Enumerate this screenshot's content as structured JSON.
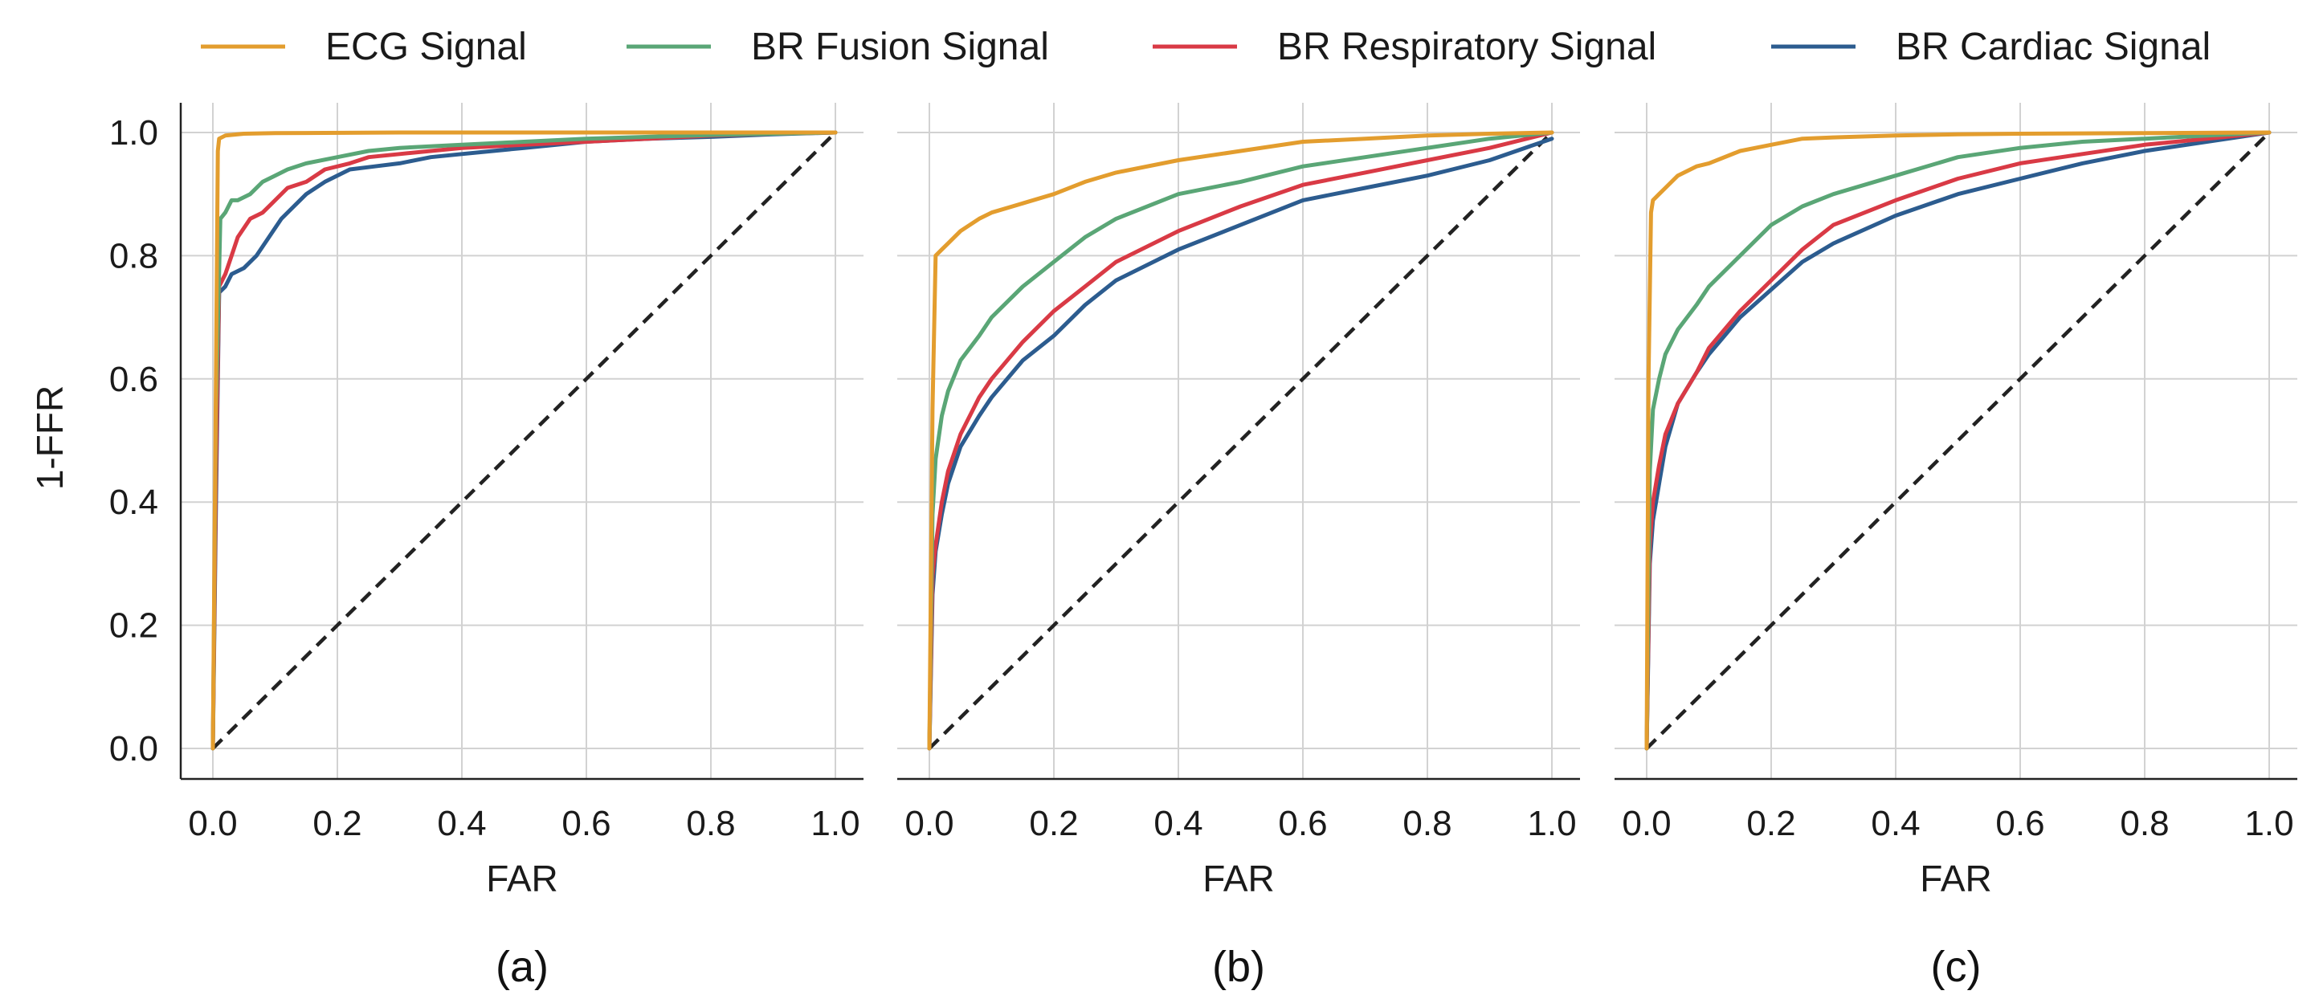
{
  "figure": {
    "legend": [
      {
        "name": "ECG Signal",
        "color": "#e39d2e"
      },
      {
        "name": "BR Fusion Signal",
        "color": "#5aa676"
      },
      {
        "name": "BR Respiratory Signal",
        "color": "#d93a45"
      },
      {
        "name": "BR Cardiac Signal",
        "color": "#2c5c8f"
      }
    ],
    "ylabel": "1-FFR"
  },
  "chart_data": [
    {
      "type": "line",
      "caption": "(a)",
      "xlabel": "FAR",
      "ylabel": "1-FFR",
      "xlim": [
        0,
        1
      ],
      "ylim": [
        0,
        1
      ],
      "xticks": [
        "0.0",
        "0.2",
        "0.4",
        "0.6",
        "0.8",
        "1.0"
      ],
      "yticks": [
        "0.0",
        "0.2",
        "0.4",
        "0.6",
        "0.8",
        "1.0"
      ],
      "grid": true,
      "diagonal": {
        "name": "chance",
        "color": "#222222",
        "style": "dashed",
        "x": [
          0,
          1
        ],
        "y": [
          0,
          1
        ]
      },
      "series": [
        {
          "name": "ECG Signal",
          "x": [
            0,
            0.008,
            0.01,
            0.02,
            0.05,
            0.1,
            0.3,
            0.6,
            1.0
          ],
          "y": [
            0,
            0.97,
            0.99,
            0.995,
            0.998,
            0.999,
            1.0,
            1.0,
            1.0
          ]
        },
        {
          "name": "BR Fusion Signal",
          "x": [
            0,
            0.005,
            0.012,
            0.02,
            0.03,
            0.04,
            0.06,
            0.08,
            0.1,
            0.12,
            0.15,
            0.2,
            0.25,
            0.3,
            0.4,
            0.5,
            0.6,
            0.7,
            0.8,
            0.9,
            1.0
          ],
          "y": [
            0,
            0.55,
            0.86,
            0.87,
            0.89,
            0.89,
            0.9,
            0.92,
            0.93,
            0.94,
            0.95,
            0.96,
            0.97,
            0.975,
            0.98,
            0.985,
            0.99,
            0.993,
            0.996,
            0.998,
            1.0
          ]
        },
        {
          "name": "BR Respiratory Signal",
          "x": [
            0,
            0.005,
            0.01,
            0.02,
            0.03,
            0.04,
            0.06,
            0.08,
            0.1,
            0.12,
            0.15,
            0.18,
            0.22,
            0.25,
            0.3,
            0.4,
            0.5,
            0.6,
            0.7,
            0.8,
            0.9,
            1.0
          ],
          "y": [
            0,
            0.45,
            0.75,
            0.77,
            0.8,
            0.83,
            0.86,
            0.87,
            0.89,
            0.91,
            0.92,
            0.94,
            0.95,
            0.96,
            0.965,
            0.975,
            0.98,
            0.985,
            0.99,
            0.995,
            0.998,
            1.0
          ]
        },
        {
          "name": "BR Cardiac Signal",
          "x": [
            0,
            0.005,
            0.01,
            0.02,
            0.03,
            0.05,
            0.07,
            0.09,
            0.11,
            0.13,
            0.15,
            0.18,
            0.22,
            0.26,
            0.3,
            0.35,
            0.4,
            0.5,
            0.6,
            0.7,
            0.8,
            0.9,
            1.0
          ],
          "y": [
            0,
            0.4,
            0.74,
            0.75,
            0.77,
            0.78,
            0.8,
            0.83,
            0.86,
            0.88,
            0.9,
            0.92,
            0.94,
            0.945,
            0.95,
            0.96,
            0.965,
            0.975,
            0.985,
            0.99,
            0.993,
            0.997,
            1.0
          ]
        }
      ]
    },
    {
      "type": "line",
      "caption": "(b)",
      "xlabel": "FAR",
      "ylabel": "",
      "xlim": [
        0,
        1
      ],
      "ylim": [
        0,
        1
      ],
      "xticks": [
        "0.0",
        "0.2",
        "0.4",
        "0.6",
        "0.8",
        "1.0"
      ],
      "yticks": [
        "0.0",
        "0.2",
        "0.4",
        "0.6",
        "0.8",
        "1.0"
      ],
      "grid": true,
      "diagonal": {
        "name": "chance",
        "color": "#222222",
        "style": "dashed",
        "x": [
          0,
          1
        ],
        "y": [
          0,
          1
        ]
      },
      "series": [
        {
          "name": "ECG Signal",
          "x": [
            0,
            0.005,
            0.01,
            0.02,
            0.03,
            0.05,
            0.08,
            0.1,
            0.15,
            0.2,
            0.25,
            0.3,
            0.4,
            0.5,
            0.6,
            0.7,
            0.8,
            0.9,
            1.0
          ],
          "y": [
            0,
            0.55,
            0.8,
            0.81,
            0.82,
            0.84,
            0.86,
            0.87,
            0.885,
            0.9,
            0.92,
            0.935,
            0.955,
            0.97,
            0.985,
            0.99,
            0.995,
            0.998,
            1.0
          ]
        },
        {
          "name": "BR Fusion Signal",
          "x": [
            0,
            0.005,
            0.01,
            0.02,
            0.03,
            0.05,
            0.08,
            0.1,
            0.15,
            0.2,
            0.25,
            0.3,
            0.4,
            0.5,
            0.6,
            0.7,
            0.8,
            0.9,
            1.0
          ],
          "y": [
            0,
            0.38,
            0.47,
            0.54,
            0.58,
            0.63,
            0.67,
            0.7,
            0.75,
            0.79,
            0.83,
            0.86,
            0.9,
            0.92,
            0.945,
            0.96,
            0.975,
            0.99,
            1.0
          ]
        },
        {
          "name": "BR Respiratory Signal",
          "x": [
            0,
            0.005,
            0.01,
            0.02,
            0.03,
            0.05,
            0.08,
            0.1,
            0.15,
            0.2,
            0.25,
            0.3,
            0.4,
            0.5,
            0.6,
            0.7,
            0.8,
            0.9,
            1.0
          ],
          "y": [
            0,
            0.28,
            0.33,
            0.4,
            0.45,
            0.51,
            0.57,
            0.6,
            0.66,
            0.71,
            0.75,
            0.79,
            0.84,
            0.88,
            0.915,
            0.935,
            0.955,
            0.975,
            1.0
          ]
        },
        {
          "name": "BR Cardiac Signal",
          "x": [
            0,
            0.005,
            0.01,
            0.02,
            0.03,
            0.05,
            0.08,
            0.1,
            0.15,
            0.2,
            0.25,
            0.3,
            0.4,
            0.5,
            0.6,
            0.7,
            0.8,
            0.9,
            1.0
          ],
          "y": [
            0,
            0.25,
            0.32,
            0.38,
            0.43,
            0.49,
            0.54,
            0.57,
            0.63,
            0.67,
            0.72,
            0.76,
            0.81,
            0.85,
            0.89,
            0.91,
            0.93,
            0.955,
            0.99
          ]
        }
      ]
    },
    {
      "type": "line",
      "caption": "(c)",
      "xlabel": "FAR",
      "ylabel": "",
      "xlim": [
        0,
        1
      ],
      "ylim": [
        0,
        1
      ],
      "xticks": [
        "0.0",
        "0.2",
        "0.4",
        "0.6",
        "0.8",
        "1.0"
      ],
      "yticks": [
        "0.0",
        "0.2",
        "0.4",
        "0.6",
        "0.8",
        "1.0"
      ],
      "grid": true,
      "diagonal": {
        "name": "chance",
        "color": "#222222",
        "style": "dashed",
        "x": [
          0,
          1
        ],
        "y": [
          0,
          1
        ]
      },
      "series": [
        {
          "name": "ECG Signal",
          "x": [
            0,
            0.003,
            0.007,
            0.01,
            0.02,
            0.03,
            0.05,
            0.08,
            0.1,
            0.15,
            0.2,
            0.25,
            0.3,
            0.4,
            0.5,
            0.6,
            0.8,
            1.0
          ],
          "y": [
            0,
            0.6,
            0.87,
            0.89,
            0.9,
            0.91,
            0.93,
            0.945,
            0.95,
            0.97,
            0.98,
            0.99,
            0.992,
            0.995,
            0.997,
            0.998,
            0.999,
            1.0
          ]
        },
        {
          "name": "BR Fusion Signal",
          "x": [
            0,
            0.005,
            0.01,
            0.02,
            0.03,
            0.05,
            0.08,
            0.1,
            0.15,
            0.2,
            0.25,
            0.3,
            0.4,
            0.5,
            0.6,
            0.7,
            0.8,
            0.9,
            1.0
          ],
          "y": [
            0,
            0.45,
            0.55,
            0.6,
            0.64,
            0.68,
            0.72,
            0.75,
            0.8,
            0.85,
            0.88,
            0.9,
            0.93,
            0.96,
            0.975,
            0.985,
            0.99,
            0.995,
            1.0
          ]
        },
        {
          "name": "BR Respiratory Signal",
          "x": [
            0,
            0.005,
            0.01,
            0.02,
            0.03,
            0.05,
            0.08,
            0.1,
            0.15,
            0.2,
            0.25,
            0.3,
            0.4,
            0.5,
            0.6,
            0.7,
            0.8,
            0.9,
            1.0
          ],
          "y": [
            0,
            0.33,
            0.4,
            0.46,
            0.51,
            0.56,
            0.61,
            0.65,
            0.71,
            0.76,
            0.81,
            0.85,
            0.89,
            0.925,
            0.95,
            0.965,
            0.98,
            0.99,
            1.0
          ]
        },
        {
          "name": "BR Cardiac Signal",
          "x": [
            0,
            0.005,
            0.01,
            0.02,
            0.03,
            0.05,
            0.08,
            0.1,
            0.15,
            0.2,
            0.25,
            0.3,
            0.4,
            0.5,
            0.6,
            0.7,
            0.8,
            0.9,
            1.0
          ],
          "y": [
            0,
            0.3,
            0.37,
            0.43,
            0.49,
            0.56,
            0.61,
            0.64,
            0.7,
            0.745,
            0.79,
            0.82,
            0.865,
            0.9,
            0.925,
            0.95,
            0.97,
            0.985,
            1.0
          ]
        }
      ]
    }
  ]
}
